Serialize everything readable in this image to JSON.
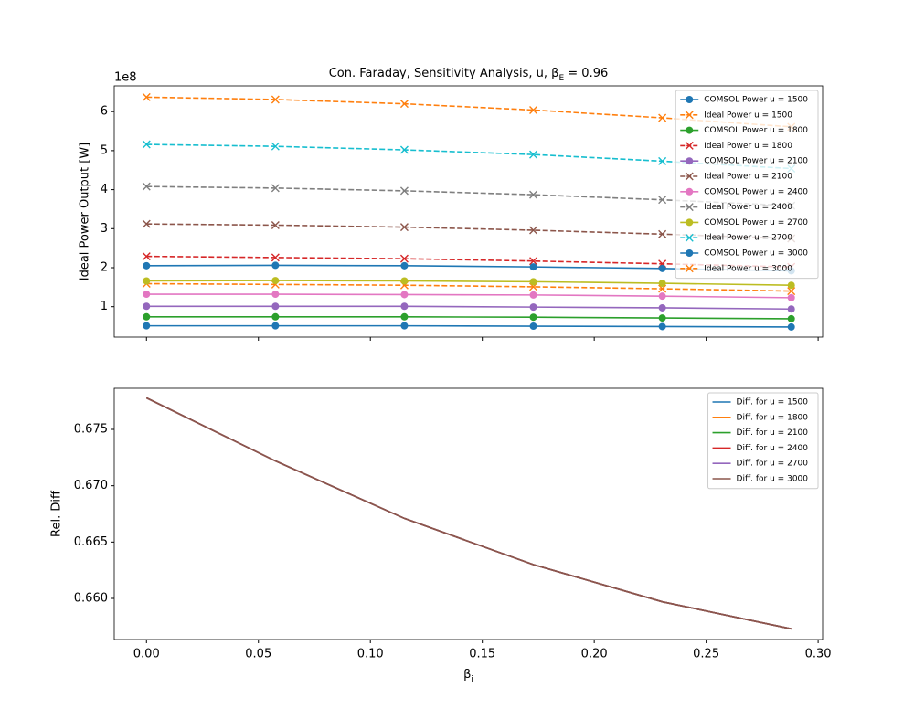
{
  "chart_data": [
    {
      "type": "line",
      "title": {
        "text": "Con. Faraday, Sensitivity Analysis, u, β",
        "subscript": "E",
        "tail": " = 0.96"
      },
      "ylabel": "Ideal Power Output [W]",
      "y_offset_label": "1e8",
      "x": [
        0,
        0.0576,
        0.1152,
        0.1728,
        0.2304,
        0.288
      ],
      "xlim": [
        -0.0144,
        0.302
      ],
      "ylim": [
        0.22,
        6.66
      ],
      "yticks": [
        1,
        2,
        3,
        4,
        5,
        6
      ],
      "legend": "upper right",
      "series": [
        {
          "name": "COMSOL Power u = 1500",
          "color": "#1f77b4",
          "marker": "o",
          "linestyle": "solid",
          "values": [
            0.51,
            0.51,
            0.51,
            0.5,
            0.49,
            0.48
          ]
        },
        {
          "name": "Ideal Power u = 1500",
          "color": "#ff7f0e",
          "marker": "x",
          "linestyle": "dashed",
          "values": [
            1.59,
            1.57,
            1.55,
            1.51,
            1.46,
            1.4
          ]
        },
        {
          "name": "COMSOL Power u = 1800",
          "color": "#2ca02c",
          "marker": "o",
          "linestyle": "solid",
          "values": [
            0.74,
            0.74,
            0.74,
            0.73,
            0.71,
            0.69
          ]
        },
        {
          "name": "Ideal Power u = 1800",
          "color": "#d62728",
          "marker": "x",
          "linestyle": "dashed",
          "values": [
            2.29,
            2.26,
            2.23,
            2.17,
            2.1,
            2.02
          ]
        },
        {
          "name": "COMSOL Power u = 2100",
          "color": "#9467bd",
          "marker": "o",
          "linestyle": "solid",
          "values": [
            1.01,
            1.01,
            1.01,
            0.99,
            0.97,
            0.94
          ]
        },
        {
          "name": "Ideal Power u = 2100",
          "color": "#8c564b",
          "marker": "x",
          "linestyle": "dashed",
          "values": [
            3.12,
            3.09,
            3.04,
            2.96,
            2.86,
            2.75
          ]
        },
        {
          "name": "COMSOL Power u = 2400",
          "color": "#e377c2",
          "marker": "o",
          "linestyle": "solid",
          "values": [
            1.32,
            1.32,
            1.31,
            1.3,
            1.27,
            1.23
          ]
        },
        {
          "name": "Ideal Power u = 2400",
          "color": "#7f7f7f",
          "marker": "x",
          "linestyle": "dashed",
          "values": [
            4.08,
            4.04,
            3.97,
            3.87,
            3.74,
            3.59
          ]
        },
        {
          "name": "COMSOL Power u = 2700",
          "color": "#bcbd22",
          "marker": "o",
          "linestyle": "solid",
          "values": [
            1.66,
            1.67,
            1.66,
            1.64,
            1.6,
            1.55
          ]
        },
        {
          "name": "Ideal Power u = 2700",
          "color": "#17becf",
          "marker": "x",
          "linestyle": "dashed",
          "values": [
            5.16,
            5.11,
            5.02,
            4.9,
            4.73,
            4.54
          ]
        },
        {
          "name": "COMSOL Power u = 3000",
          "color": "#1f77b4",
          "marker": "o",
          "linestyle": "solid",
          "values": [
            2.05,
            2.06,
            2.05,
            2.02,
            1.98,
            1.92
          ]
        },
        {
          "name": "Ideal Power u = 3000",
          "color": "#ff7f0e",
          "marker": "x",
          "linestyle": "dashed",
          "values": [
            6.37,
            6.31,
            6.2,
            6.04,
            5.84,
            5.61
          ]
        }
      ]
    },
    {
      "type": "line",
      "ylabel": "Rel. Diff",
      "xlabel": {
        "text": "β",
        "subscript": "i"
      },
      "x": [
        0,
        0.0576,
        0.1152,
        0.1728,
        0.2304,
        0.288
      ],
      "xlim": [
        -0.0144,
        0.302
      ],
      "xticks": [
        {
          "value": 0,
          "label": "0.00"
        },
        {
          "value": 0.05,
          "label": "0.05"
        },
        {
          "value": 0.1,
          "label": "0.10"
        },
        {
          "value": 0.15,
          "label": "0.15"
        },
        {
          "value": 0.2,
          "label": "0.20"
        },
        {
          "value": 0.25,
          "label": "0.25"
        },
        {
          "value": 0.3,
          "label": "0.30"
        }
      ],
      "ylim": [
        0.65635,
        0.67865
      ],
      "yticks": [
        {
          "value": 0.66,
          "label": "0.660"
        },
        {
          "value": 0.665,
          "label": "0.665"
        },
        {
          "value": 0.67,
          "label": "0.670"
        },
        {
          "value": 0.675,
          "label": "0.675"
        }
      ],
      "legend": "upper right",
      "series": [
        {
          "name": "Diff. for u = 1500",
          "color": "#1f77b4",
          "values": [
            0.6778,
            0.6722,
            0.6671,
            0.663,
            0.6597,
            0.6573
          ]
        },
        {
          "name": "Diff. for u = 1800",
          "color": "#ff7f0e",
          "values": [
            0.6778,
            0.6722,
            0.6671,
            0.663,
            0.6597,
            0.6573
          ]
        },
        {
          "name": "Diff. for u = 2100",
          "color": "#2ca02c",
          "values": [
            0.6778,
            0.6722,
            0.6671,
            0.663,
            0.6597,
            0.6573
          ]
        },
        {
          "name": "Diff. for u = 2400",
          "color": "#d62728",
          "values": [
            0.6778,
            0.6722,
            0.6671,
            0.663,
            0.6597,
            0.6573
          ]
        },
        {
          "name": "Diff. for u = 2700",
          "color": "#9467bd",
          "values": [
            0.6778,
            0.6722,
            0.6671,
            0.663,
            0.6597,
            0.6573
          ]
        },
        {
          "name": "Diff. for u = 3000",
          "color": "#8c564b",
          "values": [
            0.6778,
            0.6722,
            0.6671,
            0.663,
            0.6597,
            0.6573
          ]
        }
      ]
    }
  ]
}
